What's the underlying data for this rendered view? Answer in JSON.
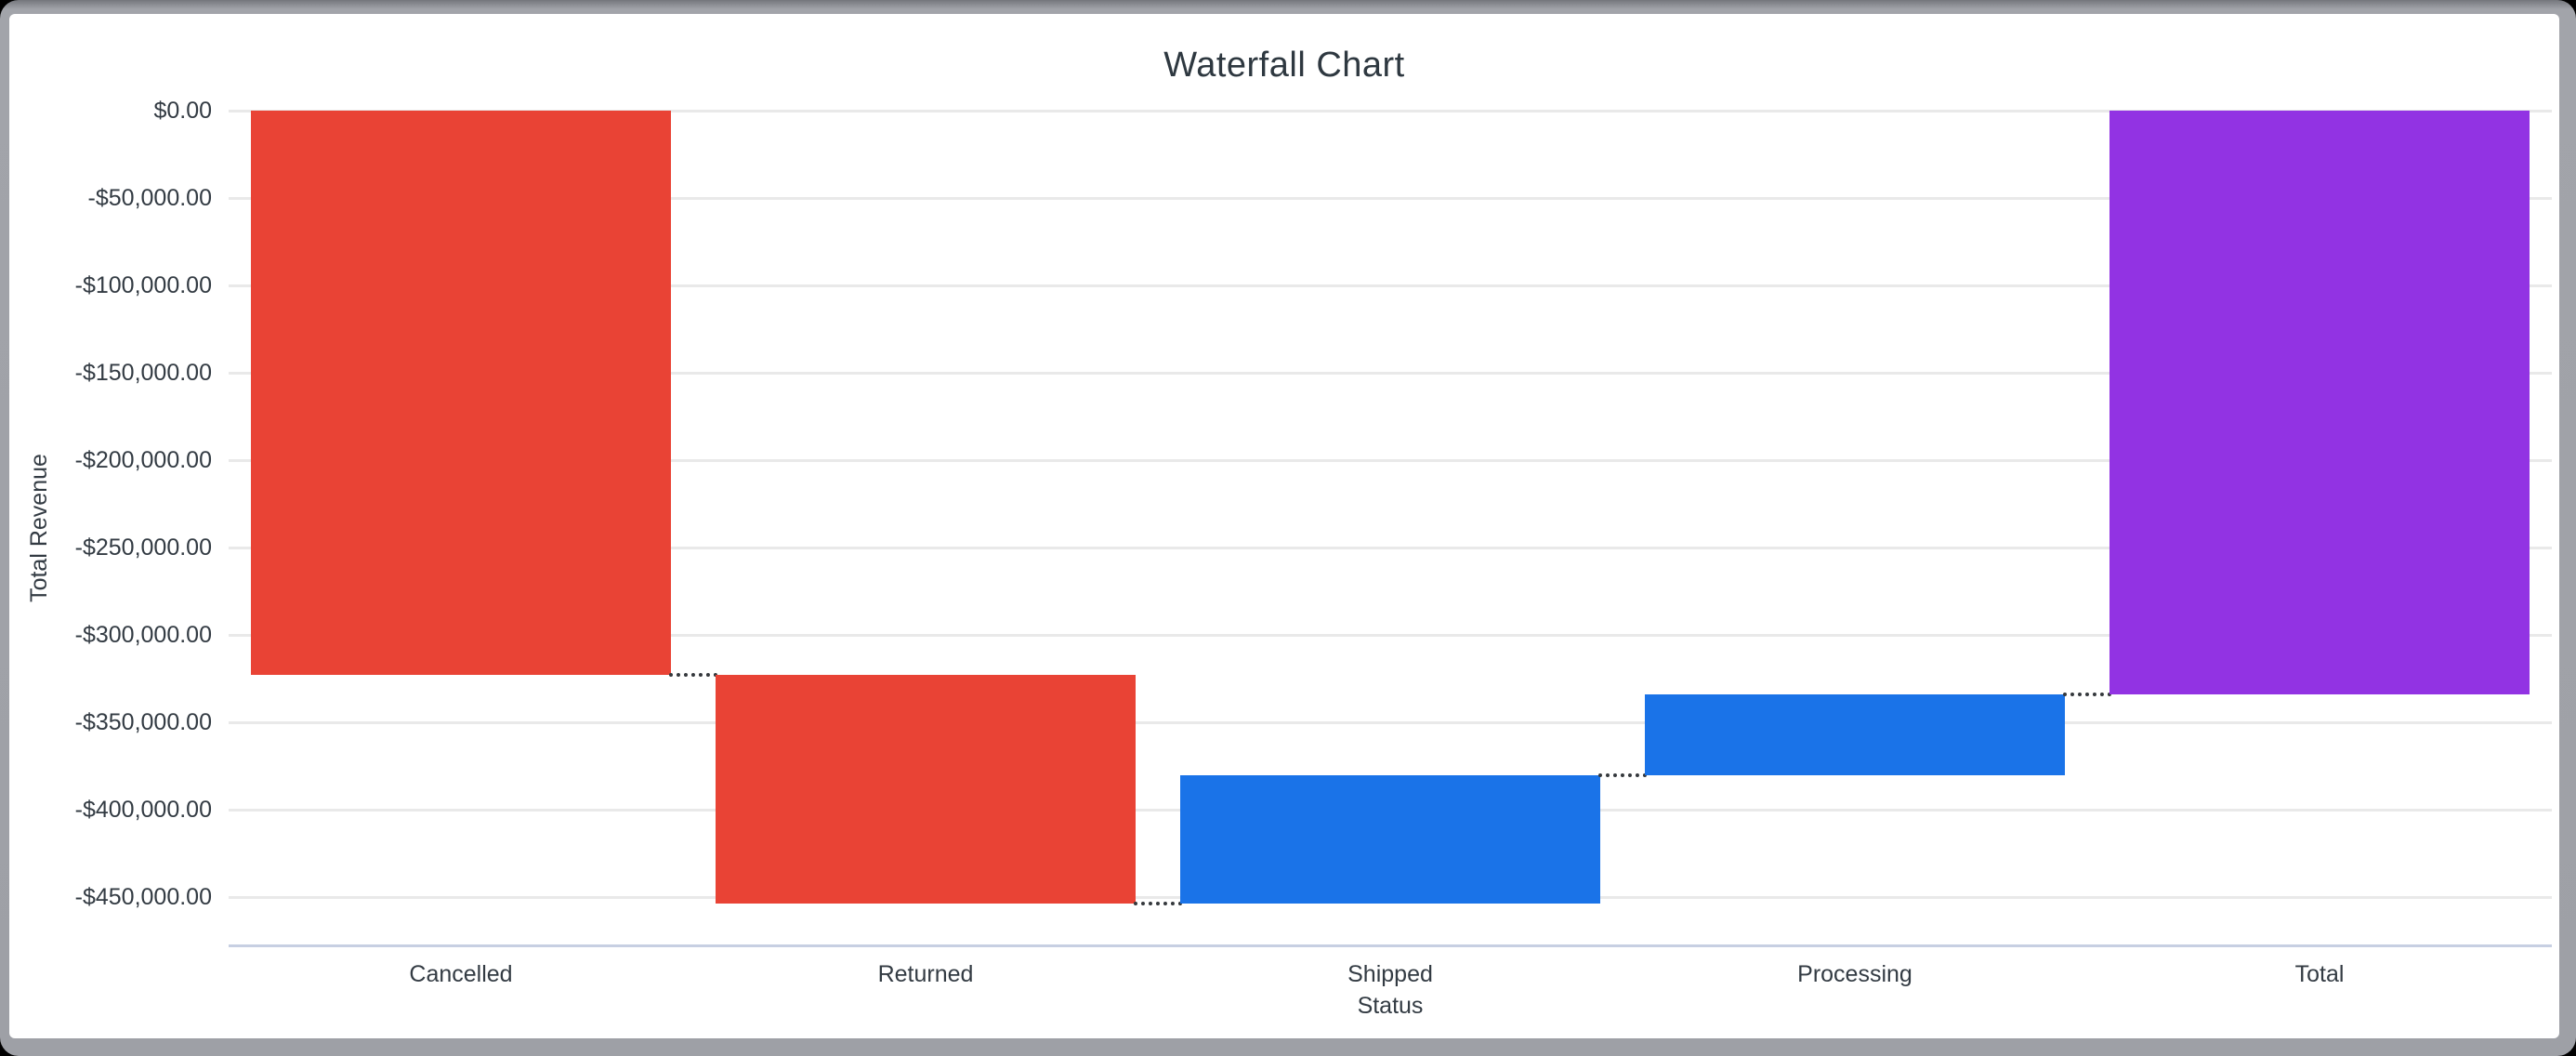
{
  "window": {
    "frame_color": "#9ea0a6",
    "card_color": "#ffffff",
    "outside_color": "#000000"
  },
  "chart": {
    "title": "Waterfall Chart",
    "x_axis_title": "Status",
    "y_axis_title": "Total Revenue",
    "text_color": "#333b43",
    "grid_color": "#e9e9e9",
    "axis_line_color": "#c7cfe2",
    "connector_color": "#35393d",
    "decrease_color": "#e94335",
    "increase_color": "#1a73e8",
    "total_color": "#9233e3"
  },
  "chart_data": {
    "type": "bar",
    "subtype": "waterfall",
    "title": "Waterfall Chart",
    "xlabel": "Status",
    "ylabel": "Total Revenue",
    "grid": true,
    "legend": false,
    "categories": [
      "Cancelled",
      "Returned",
      "Shipped",
      "Processing",
      "Total"
    ],
    "bars": [
      {
        "label": "Cancelled",
        "start": 0,
        "end": -323000,
        "change": -323000,
        "role": "decrease",
        "color": "#e94335"
      },
      {
        "label": "Returned",
        "start": -323000,
        "end": -453500,
        "change": -130500,
        "role": "decrease",
        "color": "#e94335"
      },
      {
        "label": "Shipped",
        "start": -453500,
        "end": -380000,
        "change": 73500,
        "role": "increase",
        "color": "#1a73e8"
      },
      {
        "label": "Processing",
        "start": -380000,
        "end": -334000,
        "change": 46000,
        "role": "increase",
        "color": "#1a73e8"
      },
      {
        "label": "Total",
        "start": 0,
        "end": -334000,
        "change": -334000,
        "role": "total",
        "color": "#9233e3"
      }
    ],
    "y_ticks": [
      {
        "value": 0,
        "label": "$0.00"
      },
      {
        "value": -50000,
        "label": "-$50,000.00"
      },
      {
        "value": -100000,
        "label": "-$100,000.00"
      },
      {
        "value": -150000,
        "label": "-$150,000.00"
      },
      {
        "value": -200000,
        "label": "-$200,000.00"
      },
      {
        "value": -250000,
        "label": "-$250,000.00"
      },
      {
        "value": -300000,
        "label": "-$300,000.00"
      },
      {
        "value": -350000,
        "label": "-$350,000.00"
      },
      {
        "value": -400000,
        "label": "-$400,000.00"
      },
      {
        "value": -450000,
        "label": "-$450,000.00"
      }
    ],
    "ylim": [
      -477500,
      0
    ]
  }
}
